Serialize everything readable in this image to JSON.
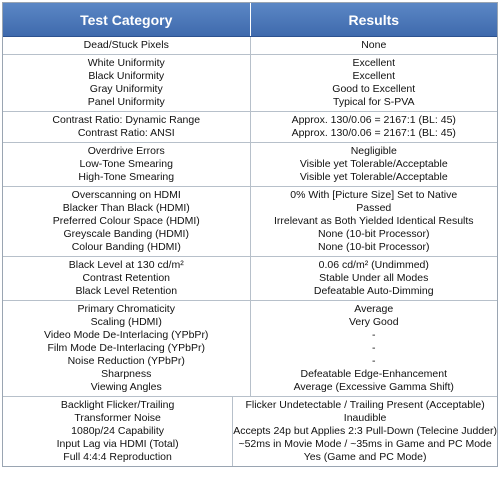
{
  "header": {
    "category": "Test Category",
    "results": "Results"
  },
  "groups": [
    {
      "rows": [
        {
          "category": "Dead/Stuck Pixels",
          "result": "None"
        }
      ]
    },
    {
      "rows": [
        {
          "category": "White Uniformity",
          "result": "Excellent"
        },
        {
          "category": "Black Uniformity",
          "result": "Excellent"
        },
        {
          "category": "Gray Uniformity",
          "result": "Good to Excellent"
        },
        {
          "category": "Panel Uniformity",
          "result": "Typical for S-PVA"
        }
      ]
    },
    {
      "rows": [
        {
          "category": "Contrast Ratio: Dynamic Range",
          "result": "Approx. 130/0.06 = 2167:1 (BL: 45)"
        },
        {
          "category": "Contrast Ratio: ANSI",
          "result": "Approx. 130/0.06 = 2167:1 (BL: 45)"
        }
      ]
    },
    {
      "rows": [
        {
          "category": "Overdrive Errors",
          "result": "Negligible"
        },
        {
          "category": "Low-Tone Smearing",
          "result": "Visible yet Tolerable/Acceptable"
        },
        {
          "category": "High-Tone Smearing",
          "result": "Visible yet Tolerable/Acceptable"
        }
      ]
    },
    {
      "rows": [
        {
          "category": "Overscanning on HDMI",
          "result": "0% With [Picture Size] Set to Native"
        },
        {
          "category": "Blacker Than Black (HDMI)",
          "result": "Passed"
        },
        {
          "category": "Preferred Colour Space (HDMI)",
          "result": "Irrelevant as Both Yielded Identical Results"
        },
        {
          "category": "Greyscale Banding (HDMI)",
          "result": "None (10-bit Processor)"
        },
        {
          "category": "Colour Banding (HDMI)",
          "result": "None (10-bit Processor)"
        }
      ]
    },
    {
      "rows": [
        {
          "category": "Black Level at 130 cd/m²",
          "result": "0.06 cd/m² (Undimmed)"
        },
        {
          "category": "Contrast Retention",
          "result": "Stable Under all Modes"
        },
        {
          "category": "Black Level Retention",
          "result": "Defeatable Auto-Dimming"
        }
      ]
    },
    {
      "rows": [
        {
          "category": "Primary Chromaticity",
          "result": "Average"
        },
        {
          "category": "Scaling (HDMI)",
          "result": "Very Good"
        },
        {
          "category": "Video Mode De-Interlacing (YPbPr)",
          "result": "-"
        },
        {
          "category": "Film Mode De-Interlacing (YPbPr)",
          "result": "-"
        },
        {
          "category": "Noise Reduction (YPbPr)",
          "result": "-"
        },
        {
          "category": "Sharpness",
          "result": "Defeatable Edge-Enhancement"
        },
        {
          "category": "Viewing Angles",
          "result": "Average (Excessive Gamma Shift)"
        }
      ]
    },
    {
      "rows": [
        {
          "category": "Backlight Flicker/Trailing",
          "result": "Flicker Undetectable / Trailing Present (Acceptable)"
        },
        {
          "category": "Transformer Noise",
          "result": "Inaudible"
        },
        {
          "category": "1080p/24 Capability",
          "result": "Accepts 24p but Applies 2:3 Pull-Down (Telecine Judder)"
        },
        {
          "category": "Input Lag via HDMI (Total)",
          "result": "~52ms in Movie Mode / ~35ms in Game and PC Mode"
        },
        {
          "category": "Full 4:4:4 Reproduction",
          "result": "Yes (Game and PC Mode)"
        }
      ]
    }
  ]
}
